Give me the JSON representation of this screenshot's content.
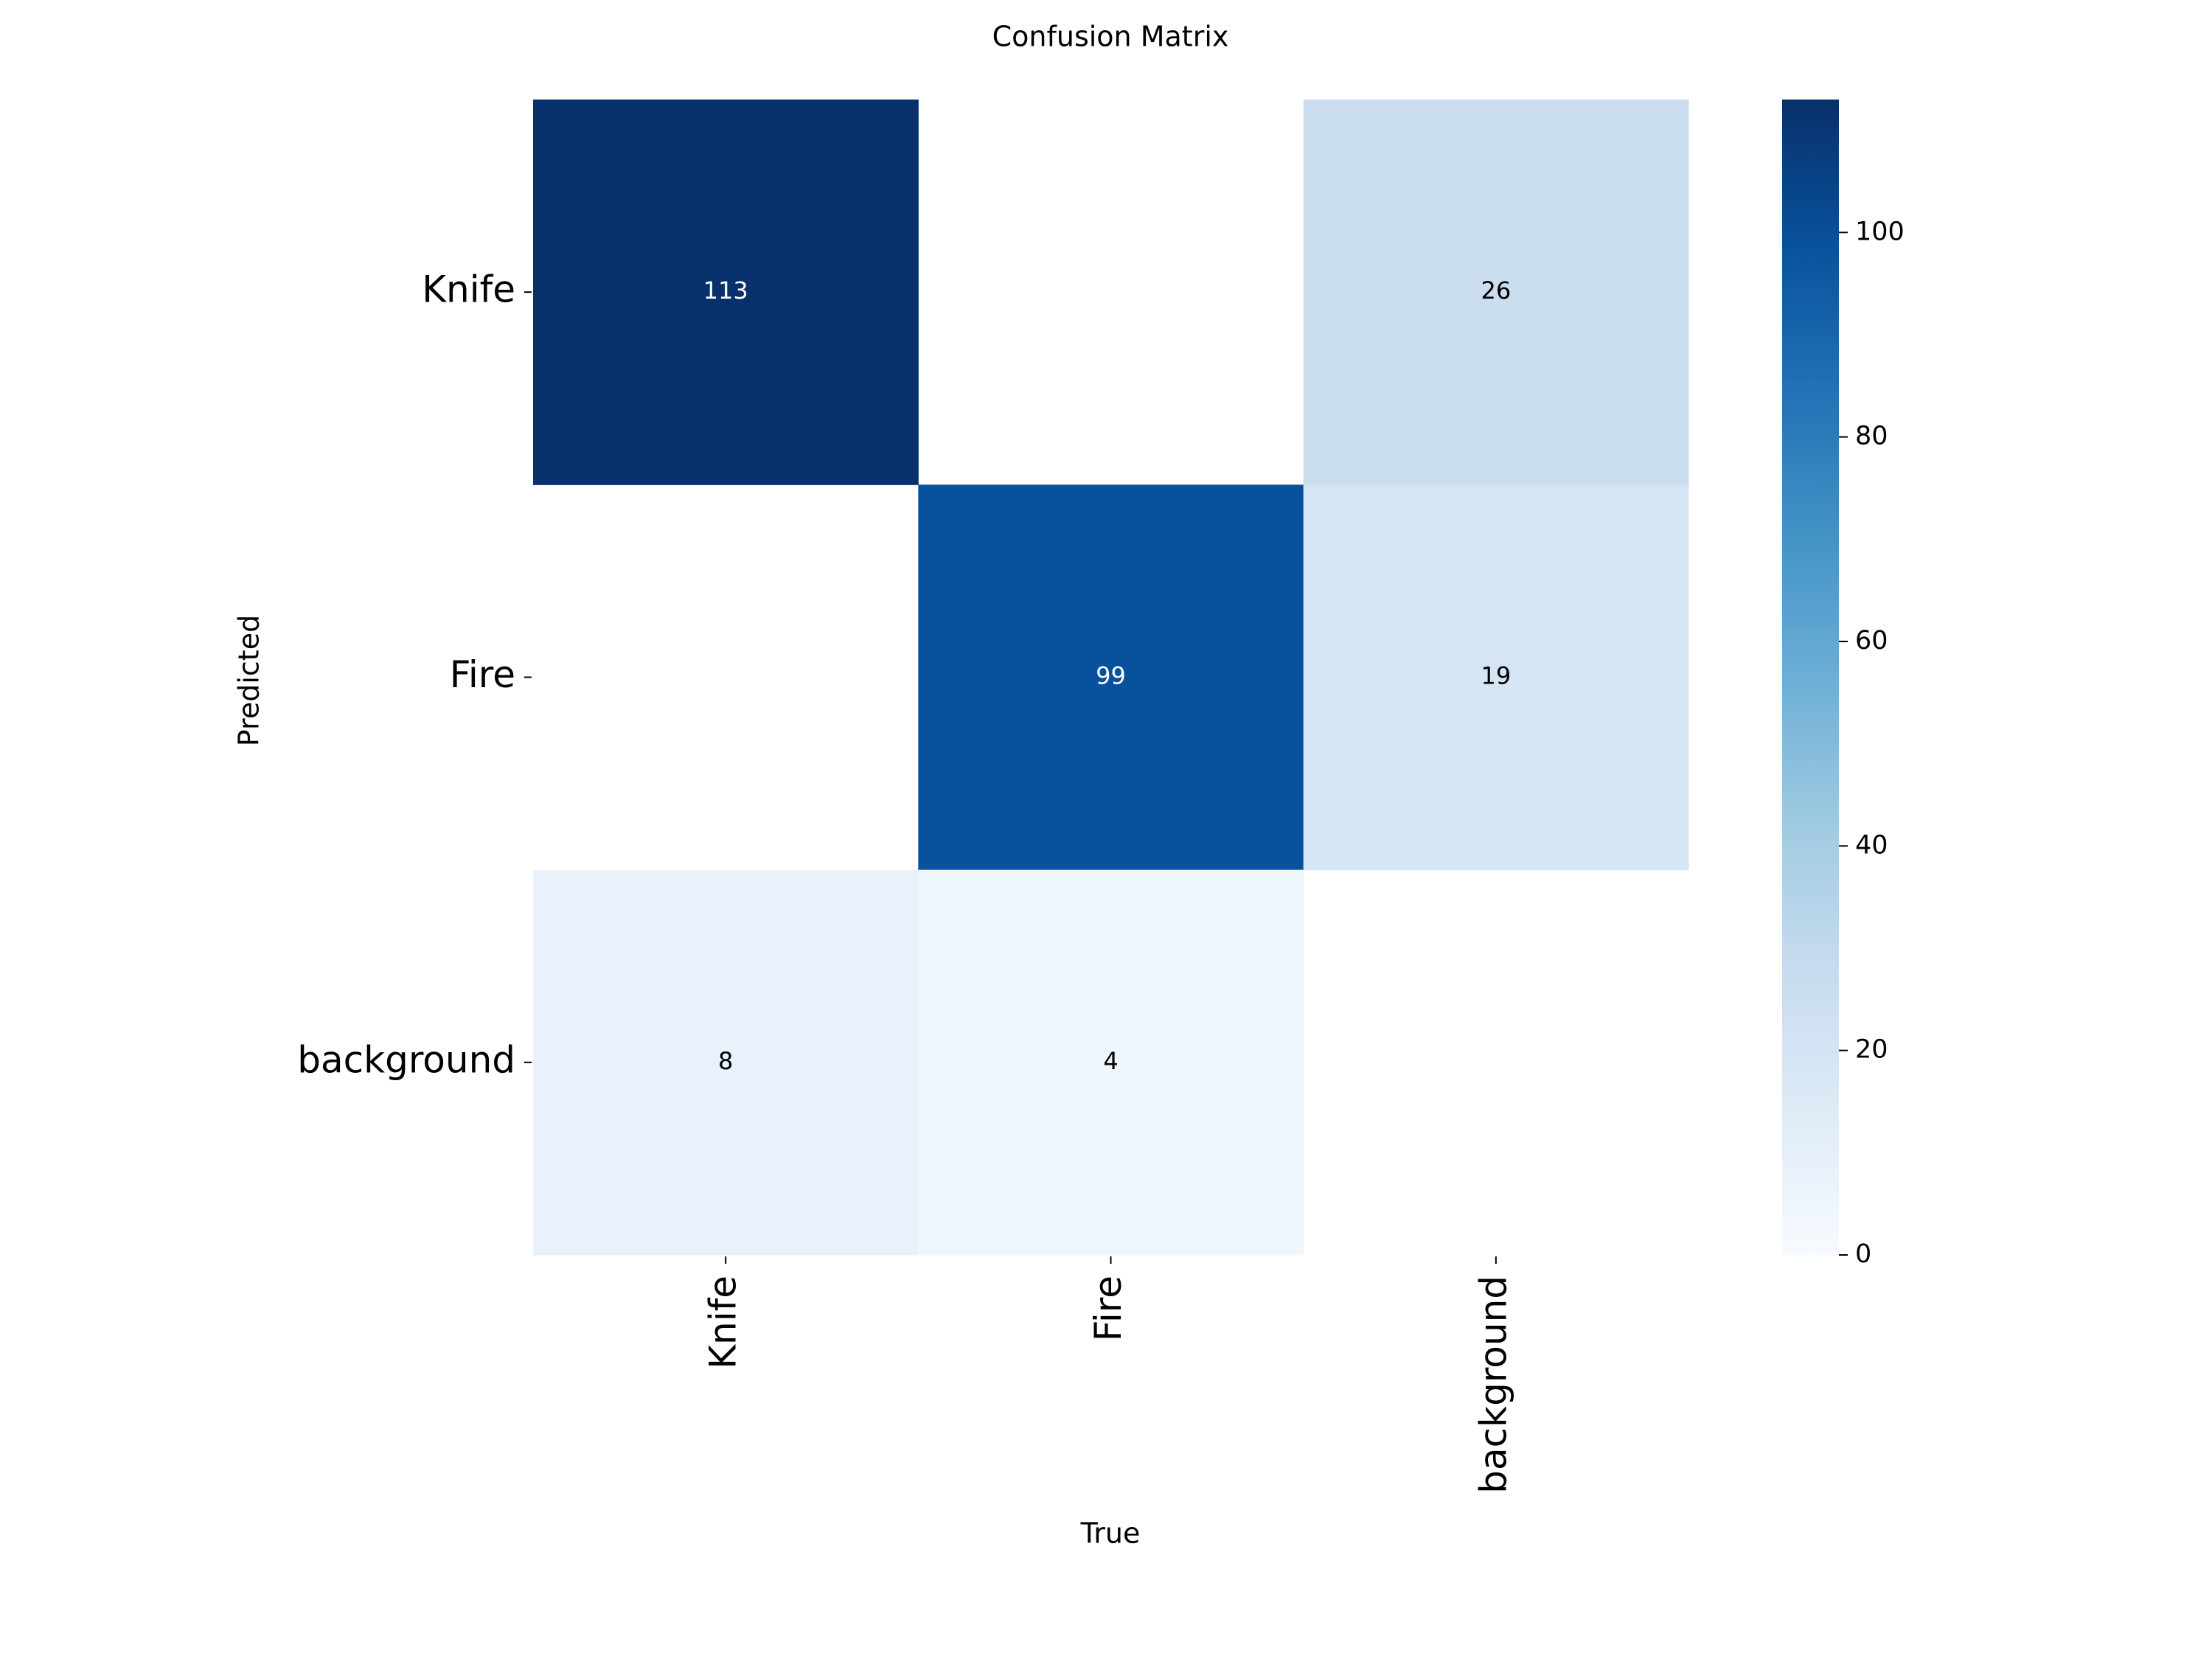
{
  "chart_data": {
    "type": "heatmap",
    "title": "Confusion Matrix",
    "xlabel": "True",
    "ylabel": "Predicted",
    "columns": [
      "Knife",
      "Fire",
      "background"
    ],
    "rows": [
      "Knife",
      "Fire",
      "background"
    ],
    "values": [
      [
        113,
        null,
        26
      ],
      [
        null,
        99,
        19
      ],
      [
        8,
        4,
        null
      ]
    ],
    "colormap": "Blues",
    "zlim": [
      0,
      113
    ],
    "zticks": [
      0,
      20,
      40,
      60,
      80,
      100
    ]
  }
}
